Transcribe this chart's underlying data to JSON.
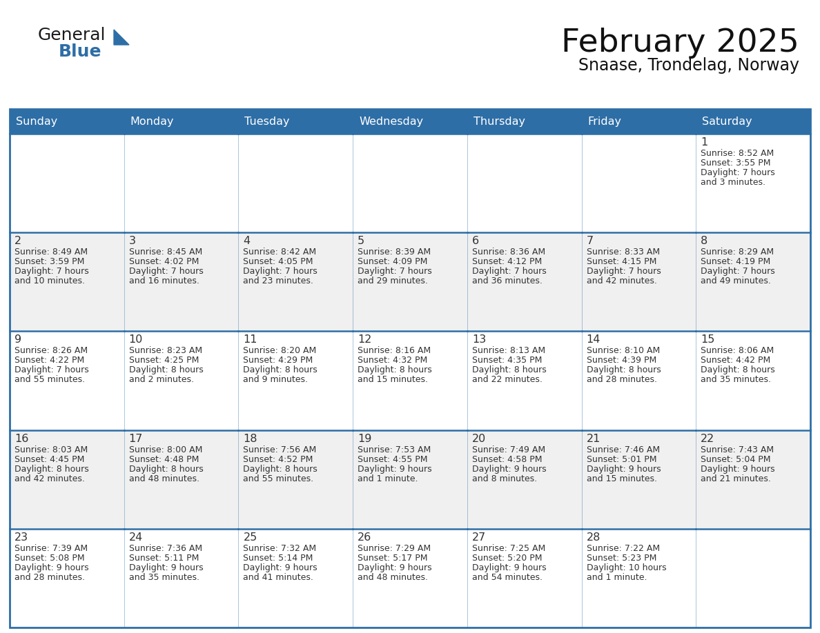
{
  "title": "February 2025",
  "subtitle": "Snaase, Trondelag, Norway",
  "header_bg": "#2E6EA6",
  "header_text_color": "#FFFFFF",
  "cell_bg": "#FFFFFF",
  "cell_bg_alt": "#F0F0F0",
  "border_color": "#2E6EA6",
  "text_color": "#333333",
  "days_of_week": [
    "Sunday",
    "Monday",
    "Tuesday",
    "Wednesday",
    "Thursday",
    "Friday",
    "Saturday"
  ],
  "logo_general_color": "#1a1a1a",
  "logo_blue_color": "#2E6EA6",
  "fig_width": 11.88,
  "fig_height": 9.18,
  "weeks": [
    [
      null,
      null,
      null,
      null,
      null,
      null,
      {
        "day": 1,
        "sunrise": "8:52 AM",
        "sunset": "3:55 PM",
        "daylight": "7 hours",
        "daylight2": "and 3 minutes."
      }
    ],
    [
      {
        "day": 2,
        "sunrise": "8:49 AM",
        "sunset": "3:59 PM",
        "daylight": "7 hours",
        "daylight2": "and 10 minutes."
      },
      {
        "day": 3,
        "sunrise": "8:45 AM",
        "sunset": "4:02 PM",
        "daylight": "7 hours",
        "daylight2": "and 16 minutes."
      },
      {
        "day": 4,
        "sunrise": "8:42 AM",
        "sunset": "4:05 PM",
        "daylight": "7 hours",
        "daylight2": "and 23 minutes."
      },
      {
        "day": 5,
        "sunrise": "8:39 AM",
        "sunset": "4:09 PM",
        "daylight": "7 hours",
        "daylight2": "and 29 minutes."
      },
      {
        "day": 6,
        "sunrise": "8:36 AM",
        "sunset": "4:12 PM",
        "daylight": "7 hours",
        "daylight2": "and 36 minutes."
      },
      {
        "day": 7,
        "sunrise": "8:33 AM",
        "sunset": "4:15 PM",
        "daylight": "7 hours",
        "daylight2": "and 42 minutes."
      },
      {
        "day": 8,
        "sunrise": "8:29 AM",
        "sunset": "4:19 PM",
        "daylight": "7 hours",
        "daylight2": "and 49 minutes."
      }
    ],
    [
      {
        "day": 9,
        "sunrise": "8:26 AM",
        "sunset": "4:22 PM",
        "daylight": "7 hours",
        "daylight2": "and 55 minutes."
      },
      {
        "day": 10,
        "sunrise": "8:23 AM",
        "sunset": "4:25 PM",
        "daylight": "8 hours",
        "daylight2": "and 2 minutes."
      },
      {
        "day": 11,
        "sunrise": "8:20 AM",
        "sunset": "4:29 PM",
        "daylight": "8 hours",
        "daylight2": "and 9 minutes."
      },
      {
        "day": 12,
        "sunrise": "8:16 AM",
        "sunset": "4:32 PM",
        "daylight": "8 hours",
        "daylight2": "and 15 minutes."
      },
      {
        "day": 13,
        "sunrise": "8:13 AM",
        "sunset": "4:35 PM",
        "daylight": "8 hours",
        "daylight2": "and 22 minutes."
      },
      {
        "day": 14,
        "sunrise": "8:10 AM",
        "sunset": "4:39 PM",
        "daylight": "8 hours",
        "daylight2": "and 28 minutes."
      },
      {
        "day": 15,
        "sunrise": "8:06 AM",
        "sunset": "4:42 PM",
        "daylight": "8 hours",
        "daylight2": "and 35 minutes."
      }
    ],
    [
      {
        "day": 16,
        "sunrise": "8:03 AM",
        "sunset": "4:45 PM",
        "daylight": "8 hours",
        "daylight2": "and 42 minutes."
      },
      {
        "day": 17,
        "sunrise": "8:00 AM",
        "sunset": "4:48 PM",
        "daylight": "8 hours",
        "daylight2": "and 48 minutes."
      },
      {
        "day": 18,
        "sunrise": "7:56 AM",
        "sunset": "4:52 PM",
        "daylight": "8 hours",
        "daylight2": "and 55 minutes."
      },
      {
        "day": 19,
        "sunrise": "7:53 AM",
        "sunset": "4:55 PM",
        "daylight": "9 hours",
        "daylight2": "and 1 minute."
      },
      {
        "day": 20,
        "sunrise": "7:49 AM",
        "sunset": "4:58 PM",
        "daylight": "9 hours",
        "daylight2": "and 8 minutes."
      },
      {
        "day": 21,
        "sunrise": "7:46 AM",
        "sunset": "5:01 PM",
        "daylight": "9 hours",
        "daylight2": "and 15 minutes."
      },
      {
        "day": 22,
        "sunrise": "7:43 AM",
        "sunset": "5:04 PM",
        "daylight": "9 hours",
        "daylight2": "and 21 minutes."
      }
    ],
    [
      {
        "day": 23,
        "sunrise": "7:39 AM",
        "sunset": "5:08 PM",
        "daylight": "9 hours",
        "daylight2": "and 28 minutes."
      },
      {
        "day": 24,
        "sunrise": "7:36 AM",
        "sunset": "5:11 PM",
        "daylight": "9 hours",
        "daylight2": "and 35 minutes."
      },
      {
        "day": 25,
        "sunrise": "7:32 AM",
        "sunset": "5:14 PM",
        "daylight": "9 hours",
        "daylight2": "and 41 minutes."
      },
      {
        "day": 26,
        "sunrise": "7:29 AM",
        "sunset": "5:17 PM",
        "daylight": "9 hours",
        "daylight2": "and 48 minutes."
      },
      {
        "day": 27,
        "sunrise": "7:25 AM",
        "sunset": "5:20 PM",
        "daylight": "9 hours",
        "daylight2": "and 54 minutes."
      },
      {
        "day": 28,
        "sunrise": "7:22 AM",
        "sunset": "5:23 PM",
        "daylight": "10 hours",
        "daylight2": "and 1 minute."
      },
      null
    ]
  ]
}
